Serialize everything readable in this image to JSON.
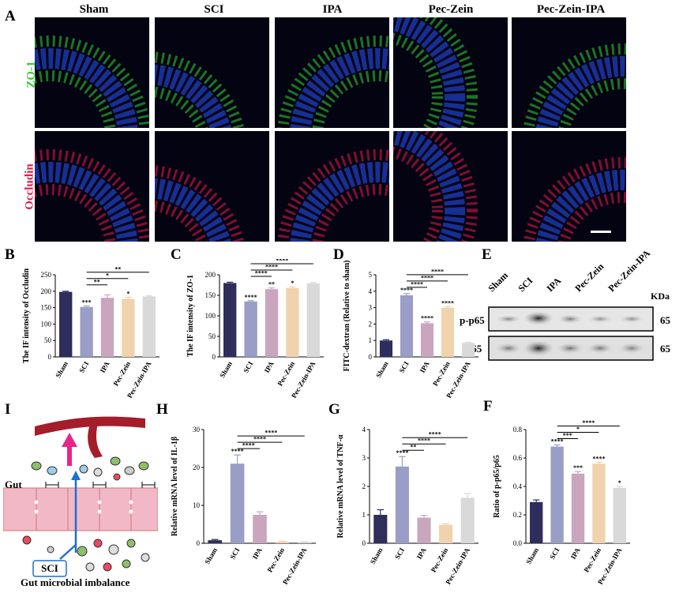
{
  "panel_letters": {
    "A": "A",
    "B": "B",
    "C": "C",
    "D": "D",
    "E": "E",
    "F": "F",
    "G": "G",
    "H": "H",
    "I": "I"
  },
  "colors": {
    "sham": "#2e2d5c",
    "sci": "#9a9dc6",
    "ipa": "#c9a6be",
    "peczein": "#f0d3ad",
    "peczeinipa": "#d9d9d9",
    "zo1": "#2fd12f",
    "occludin": "#e8174a"
  },
  "panel_A": {
    "columns": [
      "Sham",
      "SCI",
      "IPA",
      "Pec-Zein",
      "Pec-Zein-IPA"
    ],
    "rows": [
      "ZO-1",
      "Occludin"
    ]
  },
  "groups": [
    "Sham",
    "SCI",
    "IPA",
    "Pec-Zein",
    "Pec-Zein-IPA"
  ],
  "western_blot": {
    "lanes": [
      "Sham",
      "SCI",
      "IPA",
      "Pec-Zein",
      "Pec-Zein-IPA"
    ],
    "unit": "KDa",
    "bands": [
      {
        "label": "p-p65",
        "size": "65"
      },
      {
        "label": "p65",
        "size": "65"
      }
    ]
  },
  "panel_I": {
    "gut_label": "Gut",
    "sci_label": "SCI",
    "caption": "Gut microbial imbalance"
  },
  "chart_data": [
    {
      "id": "B",
      "type": "bar",
      "categories": [
        "Sham",
        "SCI",
        "IPA",
        "Pec-Zein",
        "Pec-Zein-IPA"
      ],
      "values": [
        198,
        152,
        180,
        177,
        184
      ],
      "errors": [
        2,
        3,
        9,
        5,
        2
      ],
      "ylabel": "The IF intensity of Occludin",
      "ylim": [
        0,
        250
      ],
      "yticks": [
        0,
        50,
        100,
        150,
        200,
        250
      ],
      "stars": [
        "",
        "***",
        "",
        "*",
        ""
      ],
      "brackets": [
        {
          "to": 2,
          "label": "**"
        },
        {
          "to": 3,
          "label": "*"
        },
        {
          "to": 4,
          "label": "**"
        }
      ]
    },
    {
      "id": "C",
      "type": "bar",
      "categories": [
        "Sham",
        "SCI",
        "IPA",
        "Pec-Zein",
        "Pec-Zein-IPA"
      ],
      "values": [
        180,
        135,
        165,
        168,
        179
      ],
      "errors": [
        2,
        2,
        3,
        3,
        2
      ],
      "ylabel": "The IF intensity of ZO-1",
      "ylim": [
        0,
        200
      ],
      "yticks": [
        0,
        50,
        100,
        150,
        200
      ],
      "stars": [
        "",
        "****",
        "**",
        "*",
        ""
      ],
      "brackets": [
        {
          "to": 2,
          "label": "****"
        },
        {
          "to": 3,
          "label": "****"
        },
        {
          "to": 4,
          "label": "****"
        }
      ]
    },
    {
      "id": "D",
      "type": "bar",
      "categories": [
        "Sham",
        "SCI",
        "IPA",
        "Pec-Zein",
        "Pec-Zein-IPA"
      ],
      "values": [
        1.0,
        3.75,
        2.05,
        3.0,
        0.85
      ],
      "errors": [
        0.05,
        0.1,
        0.08,
        0.06,
        0.04
      ],
      "ylabel": "FITC-dextran (Relative to sham)",
      "ylim": [
        0,
        5
      ],
      "yticks": [
        0,
        1,
        2,
        3,
        4,
        5
      ],
      "stars": [
        "",
        "****",
        "****",
        "****",
        ""
      ],
      "brackets": [
        {
          "to": 2,
          "label": "****"
        },
        {
          "to": 3,
          "label": "****"
        },
        {
          "to": 4,
          "label": "****"
        }
      ]
    },
    {
      "id": "F",
      "type": "bar",
      "categories": [
        "Sham",
        "SCI",
        "IPA",
        "Pec-Zein",
        "Pec-Zein-IPA"
      ],
      "values": [
        0.29,
        0.68,
        0.49,
        0.56,
        0.39
      ],
      "errors": [
        0.015,
        0.012,
        0.015,
        0.01,
        0.01
      ],
      "ylabel": "Ratio of p-p65/p65",
      "ylim": [
        0,
        0.8
      ],
      "yticks": [
        0.0,
        0.2,
        0.4,
        0.6,
        0.8
      ],
      "stars": [
        "",
        "****",
        "***",
        "****",
        "*"
      ],
      "brackets": [
        {
          "to": 2,
          "label": "***"
        },
        {
          "to": 3,
          "label": "*"
        },
        {
          "to": 4,
          "label": "****"
        }
      ]
    },
    {
      "id": "G",
      "type": "bar",
      "categories": [
        "Sham",
        "SCI",
        "IPA",
        "Pec-Zein",
        "Pec-Zein-IPA"
      ],
      "values": [
        1.0,
        2.7,
        0.9,
        0.65,
        1.6
      ],
      "errors": [
        0.18,
        0.35,
        0.08,
        0.04,
        0.15
      ],
      "ylabel": "Relative mRNA level of TNF-α",
      "ylim": [
        0,
        4
      ],
      "yticks": [
        0,
        1,
        2,
        3,
        4
      ],
      "stars": [
        "",
        "****",
        "",
        "",
        ""
      ],
      "brackets": [
        {
          "to": 2,
          "label": "**"
        },
        {
          "to": 3,
          "label": "****"
        },
        {
          "to": 4,
          "label": "****"
        }
      ]
    },
    {
      "id": "H",
      "type": "bar",
      "categories": [
        "Sham",
        "SCI",
        "IPA",
        "Pec-Zein",
        "Pec-Zein-IPA"
      ],
      "values": [
        0.8,
        21,
        7.5,
        0.4,
        0.3
      ],
      "errors": [
        0.2,
        2.3,
        0.8,
        0.1,
        0.1
      ],
      "ylabel": "Relative mRNA level of IL-1β",
      "ylim": [
        0,
        30
      ],
      "yticks": [
        0,
        10,
        20,
        30
      ],
      "stars": [
        "",
        "****",
        "",
        "",
        ""
      ],
      "brackets": [
        {
          "to": 2,
          "label": "****"
        },
        {
          "to": 3,
          "label": "****"
        },
        {
          "to": 4,
          "label": "****"
        }
      ]
    }
  ]
}
